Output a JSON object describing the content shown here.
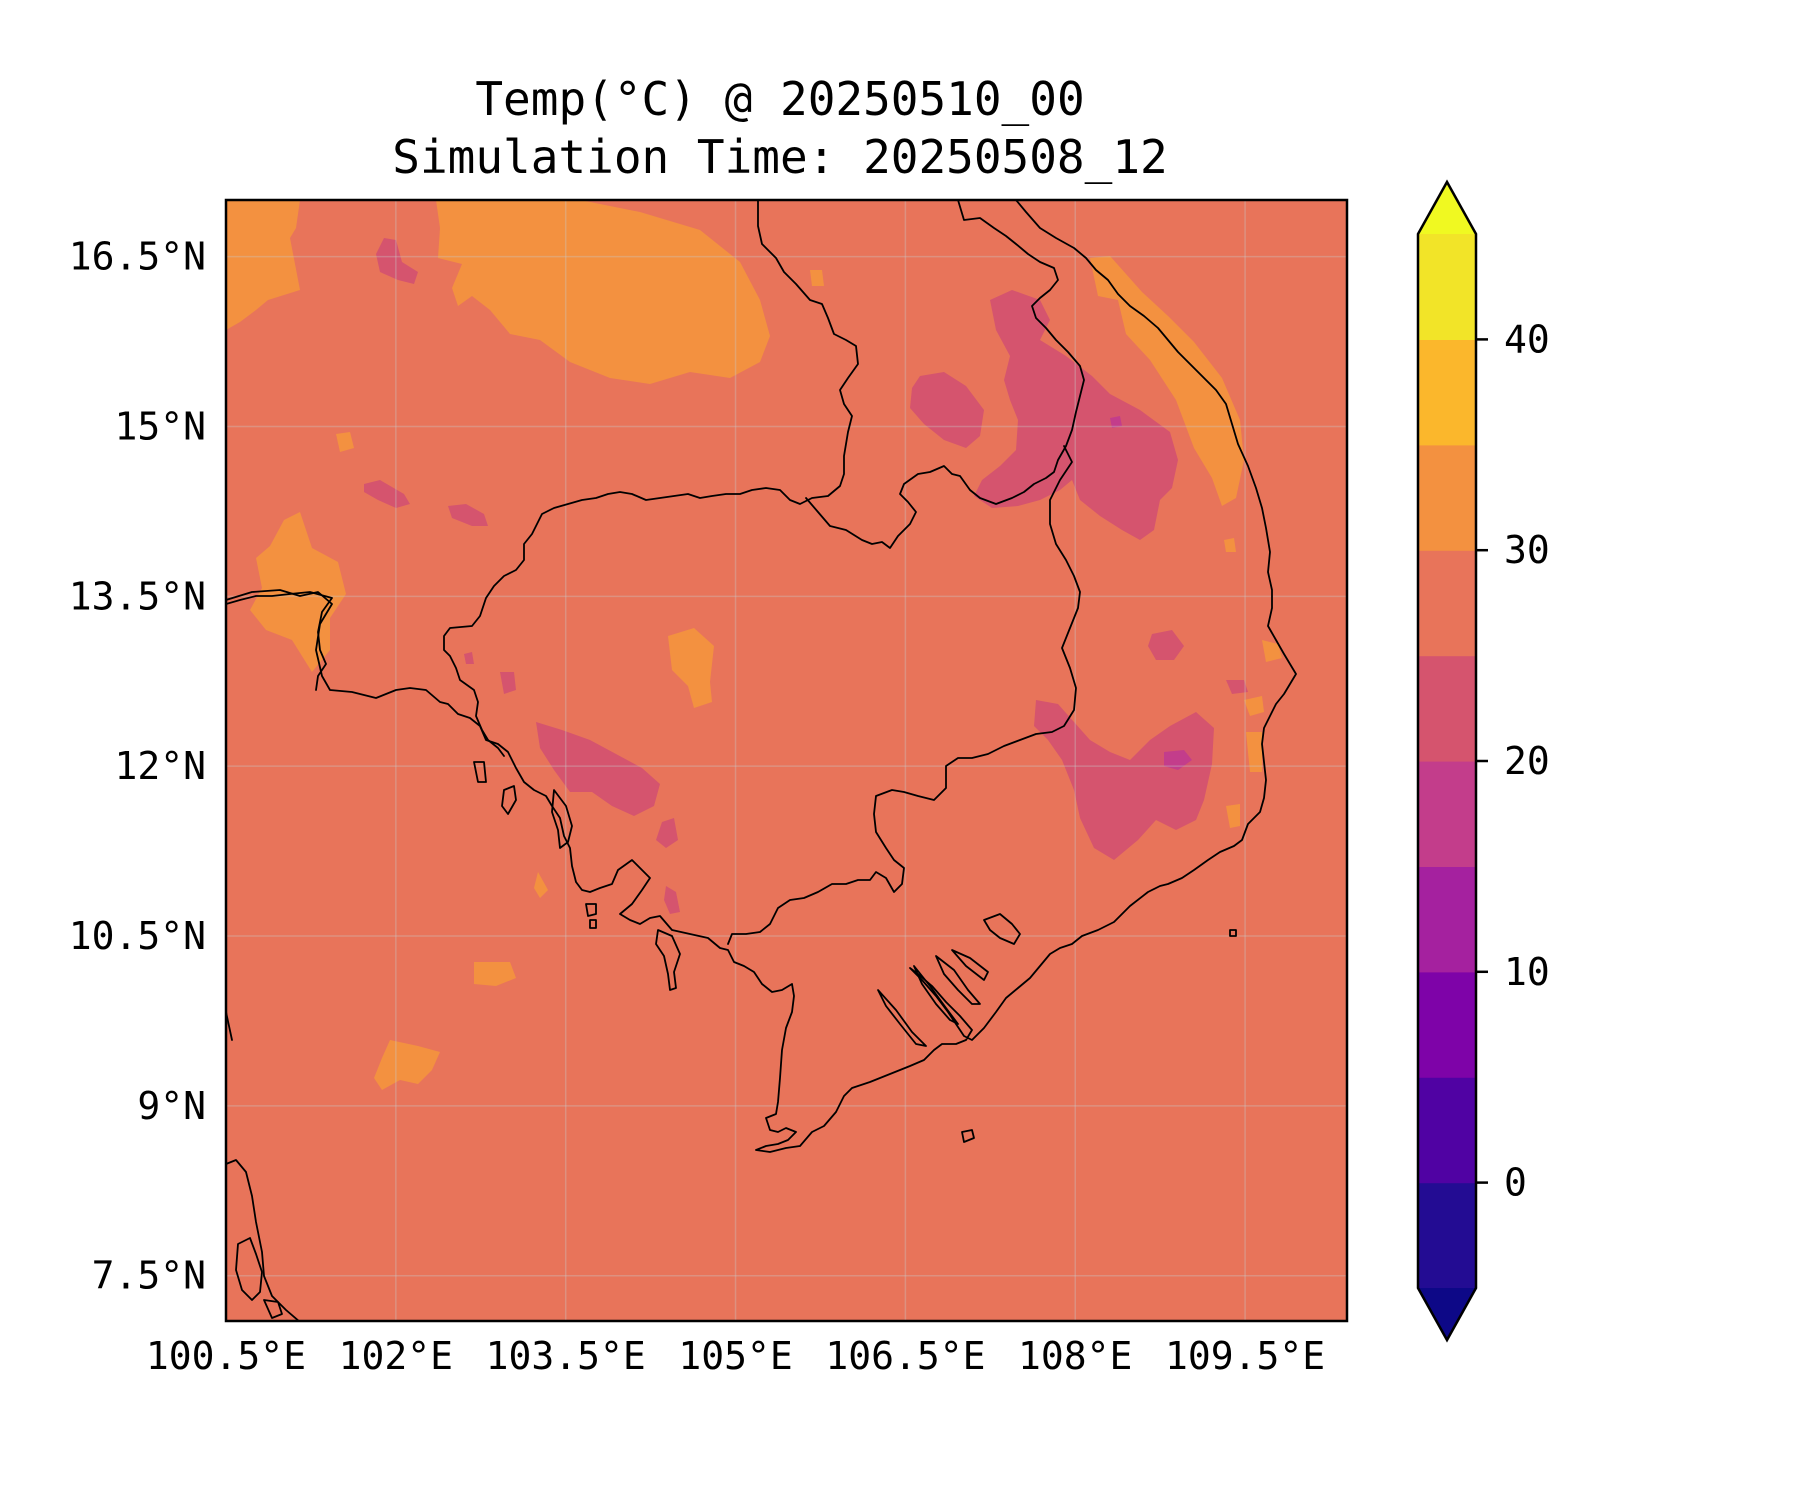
{
  "title": {
    "line1": "Temp(°C) @ 20250510_00",
    "line2": "Simulation Time: 20250508_12"
  },
  "map": {
    "region": "Mainland Southeast Asia (Cambodia, southern Laos, southern Vietnam, eastern Thailand, Gulf of Thailand)",
    "extent": {
      "lon": [
        100.5,
        110.4
      ],
      "lat": [
        7.1,
        17.0
      ]
    },
    "x_tick_labels": [
      {
        "value": 100.5,
        "label": "100.5°E"
      },
      {
        "value": 102.0,
        "label": "102°E"
      },
      {
        "value": 103.5,
        "label": "103.5°E"
      },
      {
        "value": 105.0,
        "label": "105°E"
      },
      {
        "value": 106.5,
        "label": "106.5°E"
      },
      {
        "value": 108.0,
        "label": "108°E"
      },
      {
        "value": 109.5,
        "label": "109.5°E"
      }
    ],
    "y_tick_labels": [
      {
        "value": 16.5,
        "label": "16.5°N"
      },
      {
        "value": 15.0,
        "label": "15°N"
      },
      {
        "value": 13.5,
        "label": "13.5°N"
      },
      {
        "value": 12.0,
        "label": "12°N"
      },
      {
        "value": 10.5,
        "label": "10.5°N"
      },
      {
        "value": 9.0,
        "label": "9°N"
      },
      {
        "value": 7.5,
        "label": "7.5°N"
      }
    ],
    "gridlines": true,
    "background_value_band": "25-30",
    "background_color": "#e8745a"
  },
  "colorbar": {
    "orientation": "vertical",
    "extend": "both",
    "levels": [
      -5,
      0,
      5,
      10,
      15,
      20,
      25,
      30,
      35,
      40,
      45
    ],
    "colors": [
      "#230c93",
      "#5002a3",
      "#7e03a8",
      "#a5219f",
      "#c33d8b",
      "#d5546e",
      "#e8745a",
      "#f39140",
      "#fbb72c",
      "#f2e428"
    ],
    "under_color": "#0d0887",
    "over_color": "#f0f921",
    "tick_labels": [
      {
        "value": 0,
        "label": "0"
      },
      {
        "value": 10,
        "label": "10"
      },
      {
        "value": 20,
        "label": "20"
      },
      {
        "value": 30,
        "label": "30"
      },
      {
        "value": 40,
        "label": "40"
      }
    ]
  }
}
